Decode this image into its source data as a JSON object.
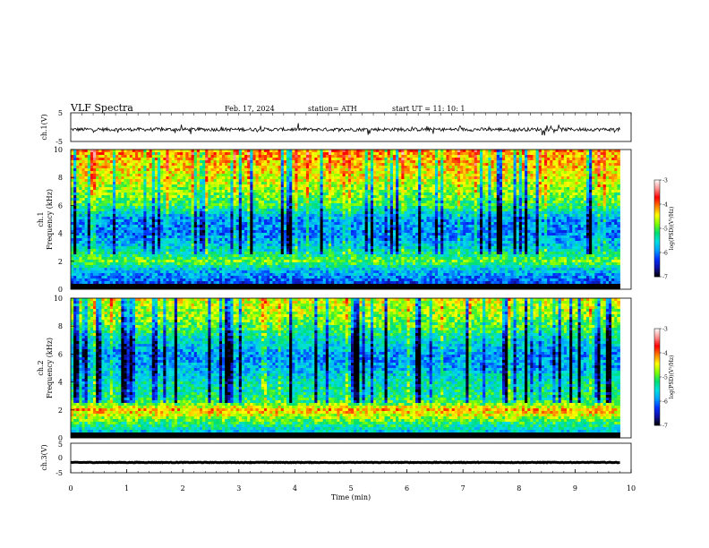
{
  "header": {
    "title": "VLF  Spectra",
    "date": "Feb. 17, 2024",
    "station": "station= ATH",
    "start_ut": "start  UT  =   11: 10: 1"
  },
  "colors": {
    "colormap": [
      "#000000",
      "#1010a0",
      "#0030ff",
      "#00a0ff",
      "#00e0e0",
      "#00e070",
      "#80ff00",
      "#ffff00",
      "#ff8000",
      "#ff0000",
      "#ff9090",
      "#ffffff"
    ],
    "trace": "#000000",
    "frame": "#000000",
    "background": "#ffffff"
  },
  "chart_data": [
    {
      "type": "line",
      "name": "ch1-waveform",
      "ylabel": "ch.1(V)",
      "ylim": [
        -5,
        5
      ],
      "yticks": [
        "5",
        "-5"
      ],
      "xlim": [
        0,
        10
      ],
      "baseline": -0.8,
      "amplitude": 1.2,
      "x_end": 9.8
    },
    {
      "type": "heatmap",
      "name": "ch1-spectrogram",
      "ylabel_channel": "ch.1",
      "ylabel": "Frequency  (kHz)",
      "ylim": [
        0,
        10
      ],
      "yticks": [
        "0",
        "2",
        "4",
        "6",
        "8",
        "10"
      ],
      "xlim": [
        0,
        10
      ],
      "x_end": 9.8,
      "colorbar": {
        "label": "log(PSD)(V²/Hz)",
        "range": [
          -7,
          -3
        ],
        "ticks": [
          "-3",
          "-4",
          "-5",
          "-6",
          "-7"
        ]
      },
      "profile_khz": [
        [
          0,
          -6.8
        ],
        [
          0.5,
          -6.2
        ],
        [
          1.0,
          -5.9
        ],
        [
          1.5,
          -5.6
        ],
        [
          2.0,
          -4.9
        ],
        [
          2.5,
          -5.3
        ],
        [
          3.0,
          -5.6
        ],
        [
          3.5,
          -5.8
        ],
        [
          4.0,
          -6.0
        ],
        [
          5.0,
          -5.9
        ],
        [
          6.0,
          -5.1
        ],
        [
          7.0,
          -4.8
        ],
        [
          8.0,
          -4.5
        ],
        [
          9.0,
          -4.3
        ],
        [
          10.0,
          -4.1
        ]
      ]
    },
    {
      "type": "heatmap",
      "name": "ch2-spectrogram",
      "ylabel_channel": "ch.2",
      "ylabel": "Frequency  (kHz)",
      "ylim": [
        0,
        10
      ],
      "yticks": [
        "0",
        "2",
        "4",
        "6",
        "8",
        "10"
      ],
      "xlim": [
        0,
        10
      ],
      "x_end": 9.8,
      "colorbar": {
        "label": "log(PSD)(V²/Hz)",
        "range": [
          -7,
          -3
        ],
        "ticks": [
          "-3",
          "-4",
          "-5",
          "-6",
          "-7"
        ]
      },
      "profile_khz": [
        [
          0,
          -6.0
        ],
        [
          1.0,
          -5.2
        ],
        [
          2.0,
          -4.2
        ],
        [
          2.5,
          -5.0
        ],
        [
          3.0,
          -5.3
        ],
        [
          4.0,
          -5.4
        ],
        [
          5.0,
          -5.8
        ],
        [
          6.0,
          -5.9
        ],
        [
          7.0,
          -5.5
        ],
        [
          8.0,
          -5.0
        ],
        [
          9.0,
          -4.7
        ],
        [
          10.0,
          -4.5
        ]
      ]
    },
    {
      "type": "line",
      "name": "ch3-waveform",
      "ylabel": "ch.3(V)",
      "ylim": [
        -5,
        5
      ],
      "yticks": [
        "5",
        "0",
        "-5"
      ],
      "xlim": [
        0,
        10
      ],
      "baseline": -1.5,
      "amplitude": 0.2,
      "x_end": 9.8,
      "xticks": [
        "0",
        "1",
        "2",
        "3",
        "4",
        "5",
        "6",
        "7",
        "8",
        "9",
        "10"
      ],
      "xlabel": "Time  (min)"
    }
  ]
}
